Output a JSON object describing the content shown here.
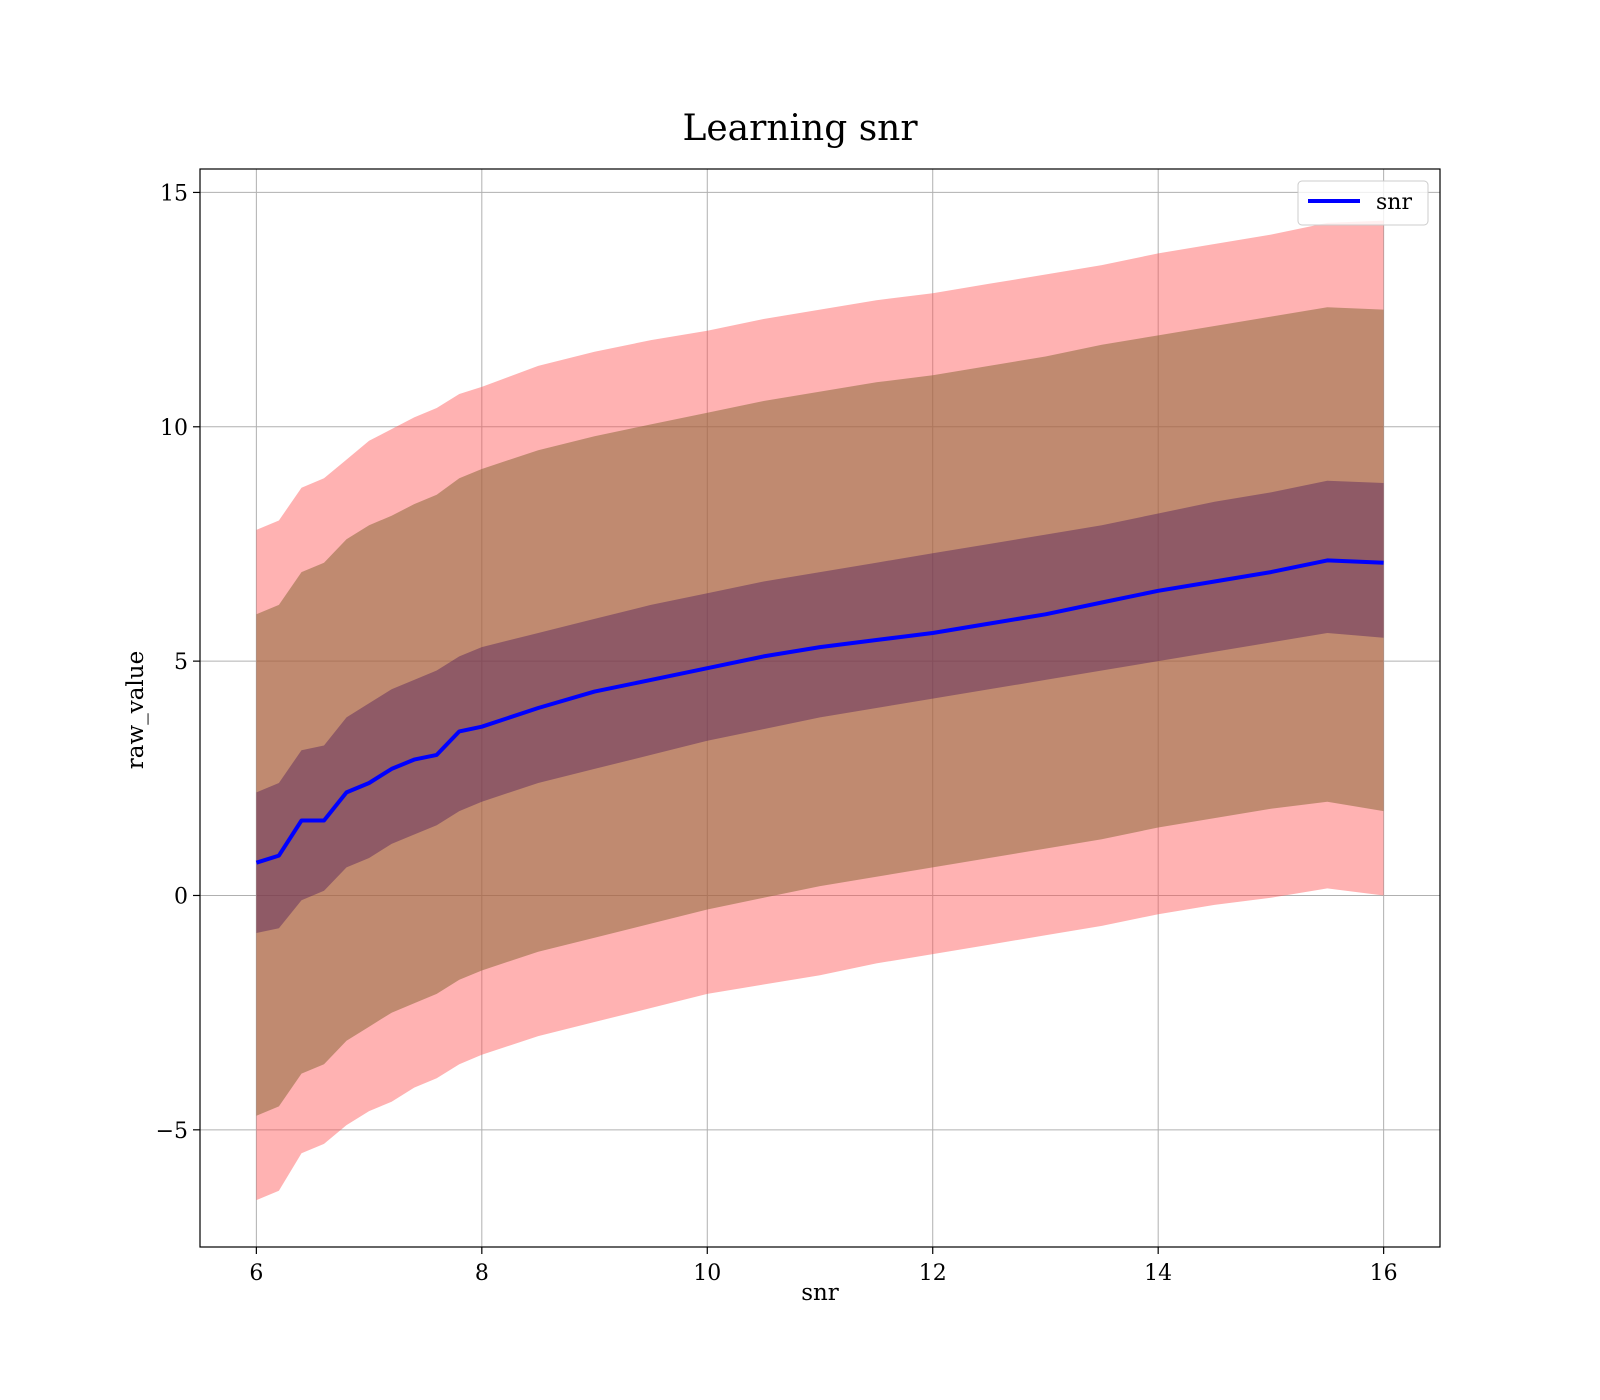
{
  "chart_data": {
    "type": "area",
    "title": "Learning snr",
    "xlabel": "snr",
    "ylabel": "raw_value",
    "xlim": [
      5.5,
      16.5
    ],
    "ylim": [
      -7.5,
      15.5
    ],
    "xticks": [
      6,
      8,
      10,
      12,
      14,
      16
    ],
    "xtick_labels": [
      "6",
      "8",
      "10",
      "12",
      "14",
      "16"
    ],
    "yticks": [
      -5,
      0,
      5,
      10,
      15
    ],
    "ytick_labels": [
      "−5",
      "0",
      "5",
      "10",
      "15"
    ],
    "grid": true,
    "legend": {
      "position": "top-right",
      "entries": [
        "snr"
      ]
    },
    "colors": {
      "mean_line": "#0000ff",
      "band_outer": "#ff9999",
      "band_middle": "#a06b4b",
      "band_inner": "#6b2a4a"
    },
    "x": [
      6.0,
      6.2,
      6.4,
      6.6,
      6.8,
      7.0,
      7.2,
      7.4,
      7.6,
      7.8,
      8.0,
      8.5,
      9.0,
      9.5,
      10.0,
      10.5,
      11.0,
      11.5,
      12.0,
      12.5,
      13.0,
      13.5,
      14.0,
      14.5,
      15.0,
      15.5,
      16.0
    ],
    "series": [
      {
        "name": "snr",
        "mean": [
          0.7,
          0.85,
          1.6,
          1.6,
          2.2,
          2.4,
          2.7,
          2.9,
          3.0,
          3.5,
          3.6,
          4.0,
          4.35,
          4.6,
          4.85,
          5.1,
          5.3,
          5.45,
          5.6,
          5.8,
          6.0,
          6.25,
          6.5,
          6.7,
          6.9,
          7.15,
          7.1
        ],
        "band_1": {
          "lower": [
            -0.8,
            -0.7,
            -0.1,
            0.1,
            0.6,
            0.8,
            1.1,
            1.3,
            1.5,
            1.8,
            2.0,
            2.4,
            2.7,
            3.0,
            3.3,
            3.55,
            3.8,
            4.0,
            4.2,
            4.4,
            4.6,
            4.8,
            5.0,
            5.2,
            5.4,
            5.6,
            5.5
          ],
          "upper": [
            2.2,
            2.4,
            3.1,
            3.2,
            3.8,
            4.1,
            4.4,
            4.6,
            4.8,
            5.1,
            5.3,
            5.6,
            5.9,
            6.2,
            6.45,
            6.7,
            6.9,
            7.1,
            7.3,
            7.5,
            7.7,
            7.9,
            8.15,
            8.4,
            8.6,
            8.85,
            8.8
          ]
        },
        "band_2": {
          "lower": [
            -4.7,
            -4.5,
            -3.8,
            -3.6,
            -3.1,
            -2.8,
            -2.5,
            -2.3,
            -2.1,
            -1.8,
            -1.6,
            -1.2,
            -0.9,
            -0.6,
            -0.3,
            -0.05,
            0.2,
            0.4,
            0.6,
            0.8,
            1.0,
            1.2,
            1.45,
            1.65,
            1.85,
            2.0,
            1.8
          ],
          "upper": [
            6.0,
            6.2,
            6.9,
            7.1,
            7.6,
            7.9,
            8.1,
            8.35,
            8.55,
            8.9,
            9.1,
            9.5,
            9.8,
            10.05,
            10.3,
            10.55,
            10.75,
            10.95,
            11.1,
            11.3,
            11.5,
            11.75,
            11.95,
            12.15,
            12.35,
            12.55,
            12.5
          ]
        },
        "band_3": {
          "lower": [
            -6.5,
            -6.3,
            -5.5,
            -5.3,
            -4.9,
            -4.6,
            -4.4,
            -4.1,
            -3.9,
            -3.6,
            -3.4,
            -3.0,
            -2.7,
            -2.4,
            -2.1,
            -1.9,
            -1.7,
            -1.45,
            -1.25,
            -1.05,
            -0.85,
            -0.65,
            -0.4,
            -0.2,
            -0.05,
            0.15,
            0.0
          ],
          "upper": [
            7.8,
            8.0,
            8.7,
            8.9,
            9.3,
            9.7,
            9.95,
            10.2,
            10.4,
            10.7,
            10.85,
            11.3,
            11.6,
            11.85,
            12.05,
            12.3,
            12.5,
            12.7,
            12.85,
            13.05,
            13.25,
            13.45,
            13.7,
            13.9,
            14.1,
            14.35,
            14.4
          ]
        }
      }
    ]
  }
}
